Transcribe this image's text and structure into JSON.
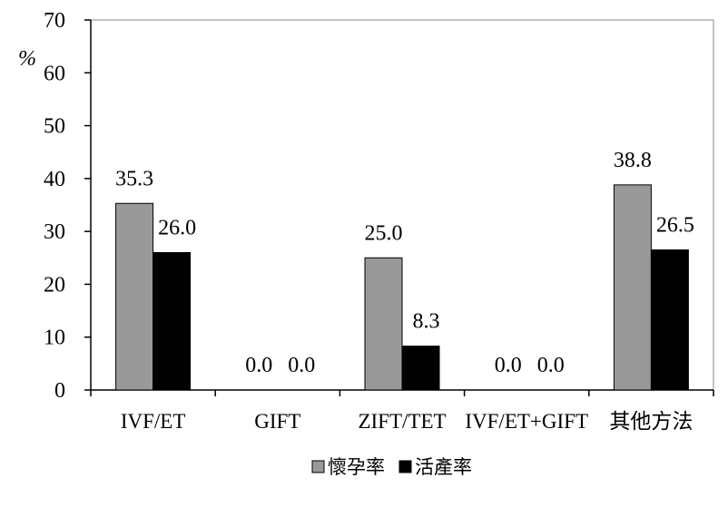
{
  "chart_data": {
    "type": "bar",
    "title": "",
    "xlabel": "",
    "ylabel": "%",
    "ylim": [
      0,
      70
    ],
    "yticks": [
      0,
      10,
      20,
      30,
      40,
      50,
      60,
      70
    ],
    "grid": false,
    "legend_position": "bottom",
    "categories": [
      "IVF/ET",
      "GIFT",
      "ZIFT/TET",
      "IVF/ET+GIFT",
      "其他方法"
    ],
    "series": [
      {
        "name": "懷孕率",
        "color": "#999999",
        "values": [
          35.3,
          0.0,
          25.0,
          0.0,
          38.8
        ],
        "labels": [
          "35.3",
          "0.0",
          "25.0",
          "0.0",
          "38.8"
        ]
      },
      {
        "name": "活產率",
        "color": "#000000",
        "values": [
          26.0,
          0.0,
          8.3,
          0.0,
          26.5
        ],
        "labels": [
          "26.0",
          "0.0",
          "8.3",
          "0.0",
          "26.5"
        ]
      }
    ]
  }
}
